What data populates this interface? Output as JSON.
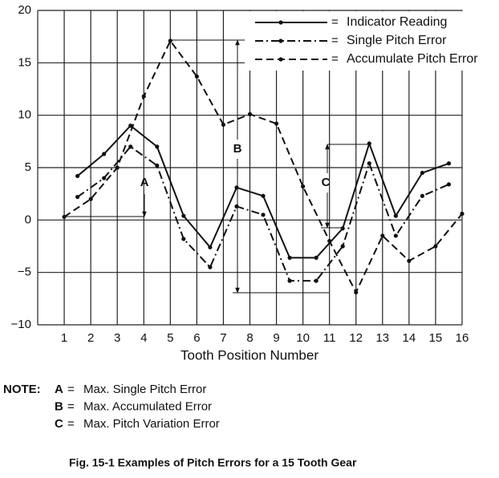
{
  "chart_data": {
    "type": "line",
    "xlabel": "Tooth Position Number",
    "xlim": [
      0,
      16
    ],
    "xticks": [
      1,
      2,
      3,
      4,
      5,
      6,
      7,
      8,
      9,
      10,
      11,
      12,
      13,
      14,
      15,
      16
    ],
    "ylim": [
      -10,
      20
    ],
    "yticks": [
      {
        "value": -10,
        "label": "−10"
      },
      {
        "value": -5,
        "label": "−5"
      },
      0,
      5,
      10,
      15,
      20
    ],
    "grid": true,
    "legend": "upper right",
    "legend_separator": "=",
    "series": [
      {
        "name": "Indicator Reading",
        "color": "#111111",
        "dash": "solid",
        "x": [
          1.5,
          2.5,
          3.5,
          4.5,
          5.5,
          6.5,
          7.5,
          8.5,
          9.5,
          10.5,
          11.5,
          12.5,
          13.5,
          14.5,
          15.5
        ],
        "values": [
          4.2,
          6.3,
          9.0,
          7.0,
          0.4,
          -2.6,
          3.1,
          2.3,
          -3.6,
          -3.6,
          -0.8,
          7.3,
          0.4,
          4.5,
          5.4
        ]
      },
      {
        "name": "Single Pitch Error",
        "color": "#111111",
        "dash": "dash-dot",
        "x": [
          1.5,
          2.5,
          3.5,
          4.5,
          5.5,
          6.5,
          7.5,
          8.5,
          9.5,
          10.5,
          11.5,
          12.5,
          13.5,
          14.5,
          15.5
        ],
        "values": [
          2.2,
          4.0,
          7.0,
          5.2,
          -1.8,
          -4.5,
          1.3,
          0.5,
          -5.8,
          -5.8,
          -2.5,
          5.4,
          -1.5,
          2.3,
          3.4
        ]
      },
      {
        "name": "Accumulate Pitch Error",
        "color": "#111111",
        "dash": "dash",
        "x": [
          1,
          2,
          3,
          4,
          5,
          6,
          7,
          8,
          9,
          10,
          11,
          12,
          13,
          14,
          15,
          16
        ],
        "values": [
          0.3,
          2.0,
          5.0,
          11.8,
          17.1,
          13.7,
          9.1,
          10.1,
          9.2,
          3.2,
          -2.0,
          -6.9,
          -1.5,
          -3.9,
          -2.5,
          0.6
        ]
      }
    ],
    "annotations": [
      "A",
      "B",
      "C"
    ]
  },
  "note": {
    "label": "NOTE:",
    "items": [
      {
        "key": "A",
        "separator": "=",
        "text": "Max. Single Pitch Error"
      },
      {
        "key": "B",
        "separator": "=",
        "text": "Max. Accumulated Error"
      },
      {
        "key": "C",
        "separator": "=",
        "text": "Max. Pitch Variation Error"
      }
    ]
  },
  "caption": "Fig. 15-1  Examples of Pitch Errors for a 15 Tooth Gear"
}
